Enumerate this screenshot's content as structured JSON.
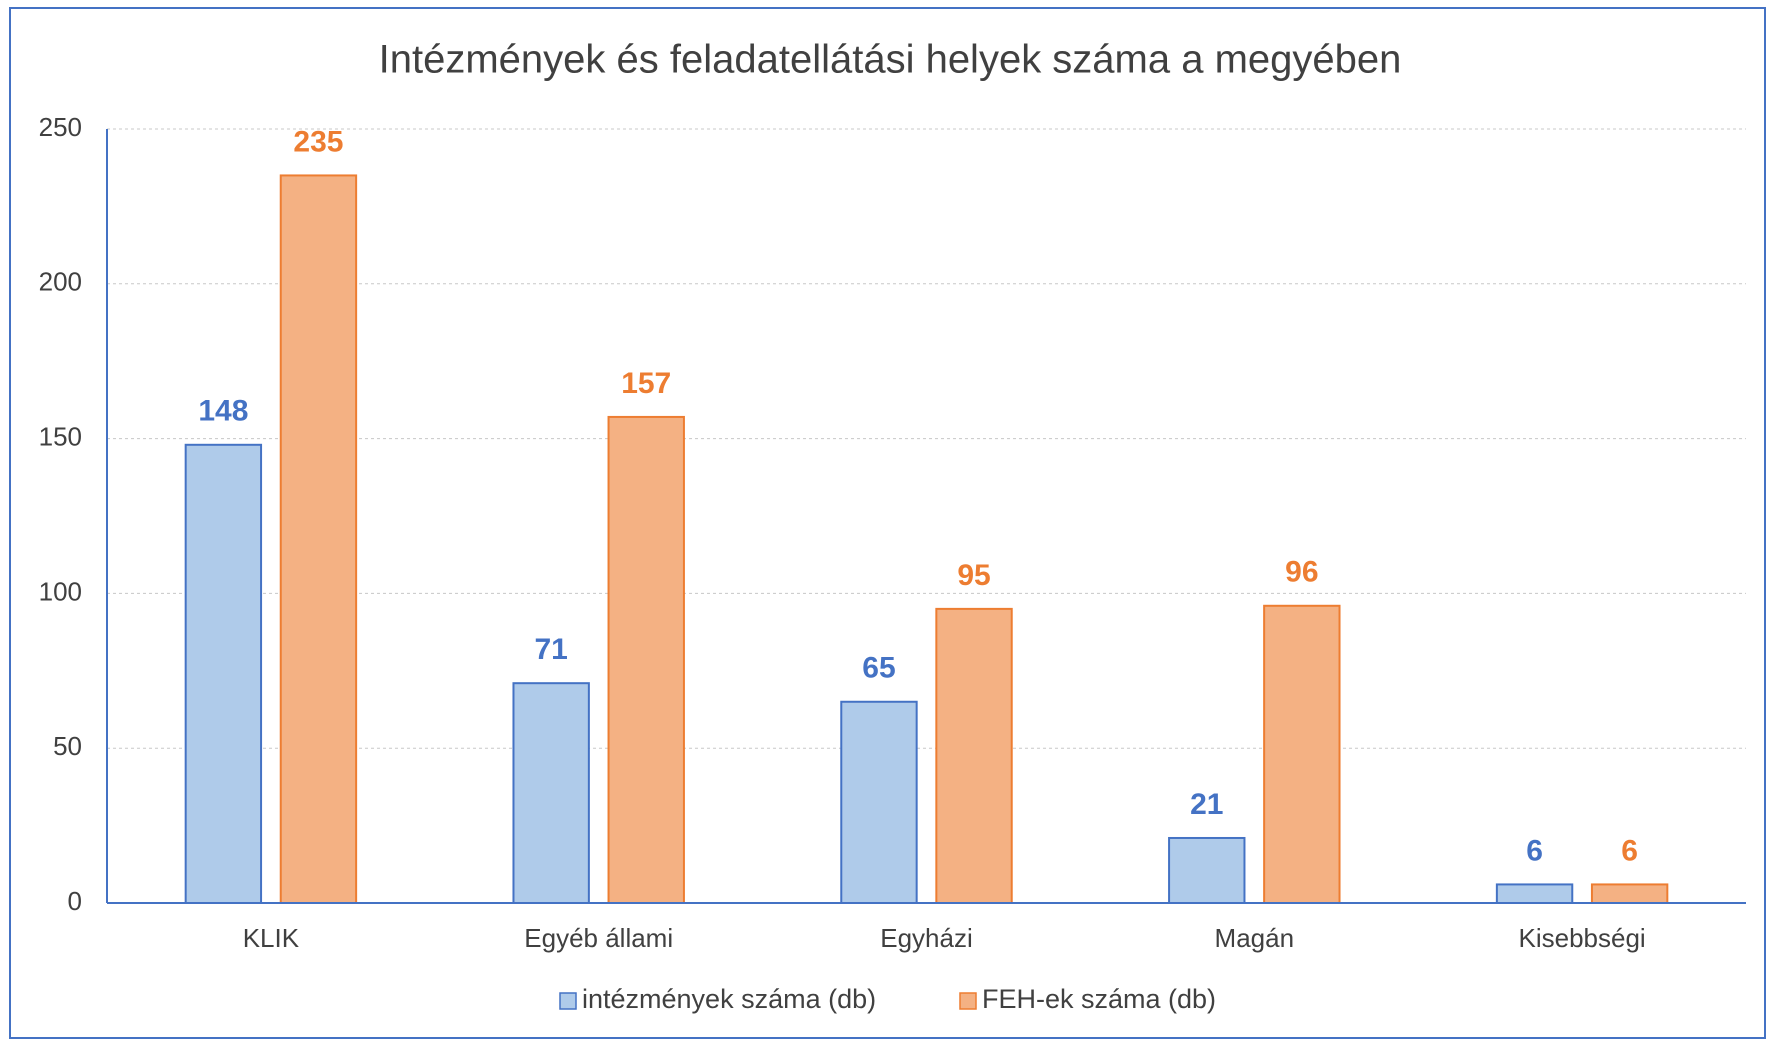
{
  "chart_data": {
    "type": "bar",
    "title": "Intézmények és feladatellátási helyek száma a megyében",
    "categories": [
      "KLIK",
      "Egyéb állami",
      "Egyházi",
      "Magán",
      "Kisebbségi"
    ],
    "series": [
      {
        "name": "intézmények száma (db)",
        "color": "#4472c4",
        "fill": "#afcbea",
        "values": [
          148,
          71,
          65,
          21,
          6
        ]
      },
      {
        "name": "FEH-ek száma (db)",
        "color": "#ed7d31",
        "fill": "#f4b183",
        "values": [
          235,
          157,
          95,
          96,
          6
        ]
      }
    ],
    "ylim": [
      0,
      250
    ],
    "yticks": [
      0,
      50,
      100,
      150,
      200,
      250
    ],
    "grid": true,
    "legend": "bottom"
  }
}
